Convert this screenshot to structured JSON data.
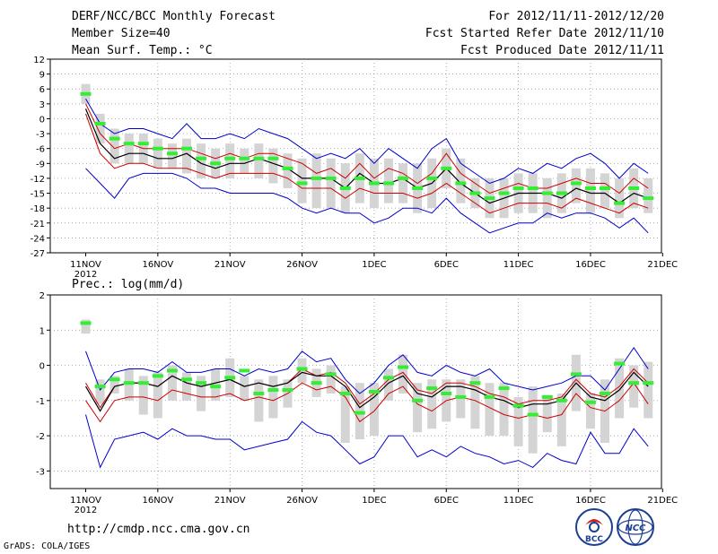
{
  "header": {
    "title": "DERF/NCC/BCC Monthly Forecast",
    "member_size": "Member Size=40",
    "period": "For 2012/11/11-2012/12/20",
    "started": "Fcst Started Refer Date 2012/11/10",
    "produced": "Fcst Produced Date 2012/11/11"
  },
  "footer": {
    "url": "http://cmdp.ncc.cma.gov.cn",
    "credit": "GrADS: COLA/IGES"
  },
  "logos": {
    "bcc": "BCC",
    "ncc": "NCC"
  },
  "colors": {
    "band": "#d4d4d4",
    "mean": "#000000",
    "inner": "#cc0000",
    "outer": "#0000cc",
    "median": "#33ee33",
    "grid": "#888888"
  },
  "chart_data": [
    {
      "type": "line",
      "title": "Mean Surf. Temp.: °C",
      "xlabel": "",
      "ylabel": "°C",
      "x_ticks": [
        "11NOV",
        "16NOV",
        "21NOV",
        "26NOV",
        "1DEC",
        "6DEC",
        "11DEC",
        "16DEC",
        "21DEC"
      ],
      "x_year": "2012",
      "ylim": [
        -27,
        12
      ],
      "y_ticks": [
        -27,
        -24,
        -21,
        -18,
        -15,
        -12,
        -9,
        -6,
        -3,
        0,
        3,
        6,
        9,
        12
      ],
      "grid": true,
      "days": 40,
      "series": [
        {
          "name": "max",
          "values": [
            4,
            -1,
            -3,
            -2,
            -2,
            -3,
            -4,
            -1,
            -4,
            -4,
            -3,
            -4,
            -2,
            -3,
            -4,
            -6,
            -8,
            -7,
            -8,
            -6,
            -9,
            -6,
            -8,
            -10,
            -6,
            -4,
            -9,
            -11,
            -13,
            -12,
            -10,
            -11,
            -9,
            -10,
            -8,
            -7,
            -9,
            -12,
            -9,
            -11
          ]
        },
        {
          "name": "upper",
          "values": [
            3,
            -3,
            -6,
            -5,
            -6,
            -6,
            -6,
            -6,
            -7,
            -8,
            -7,
            -8,
            -7,
            -7,
            -8,
            -9,
            -11,
            -10,
            -12,
            -9,
            -12,
            -10,
            -11,
            -13,
            -11,
            -7,
            -11,
            -13,
            -15,
            -14,
            -13,
            -14,
            -14,
            -13,
            -12,
            -13,
            -13,
            -15,
            -12,
            -14
          ]
        },
        {
          "name": "mean",
          "values": [
            2,
            -5,
            -8,
            -7,
            -7,
            -8,
            -8,
            -7,
            -9,
            -10,
            -9,
            -9,
            -8,
            -9,
            -10,
            -12,
            -12,
            -12,
            -14,
            -11,
            -13,
            -13,
            -12,
            -14,
            -13,
            -10,
            -13,
            -15,
            -17,
            -16,
            -15,
            -15,
            -15,
            -16,
            -14,
            -15,
            -15,
            -17,
            -15,
            -16
          ]
        },
        {
          "name": "lower",
          "values": [
            1,
            -7,
            -10,
            -9,
            -9,
            -10,
            -10,
            -10,
            -11,
            -12,
            -11,
            -11,
            -11,
            -11,
            -12,
            -14,
            -14,
            -14,
            -16,
            -14,
            -15,
            -15,
            -15,
            -16,
            -15,
            -13,
            -15,
            -17,
            -19,
            -18,
            -17,
            -17,
            -17,
            -18,
            -16,
            -17,
            -18,
            -19,
            -17,
            -18
          ]
        },
        {
          "name": "min",
          "values": [
            -10,
            -13,
            -16,
            -12,
            -11,
            -11,
            -11,
            -12,
            -14,
            -14,
            -15,
            -15,
            -15,
            -15,
            -16,
            -18,
            -19,
            -18,
            -19,
            -19,
            -21,
            -20,
            -18,
            -18,
            -19,
            -16,
            -19,
            -21,
            -23,
            -22,
            -21,
            -21,
            -19,
            -20,
            -19,
            -19,
            -20,
            -22,
            -20,
            -23
          ]
        },
        {
          "name": "median",
          "values": [
            5,
            -1,
            -4,
            -5,
            -5,
            -6,
            -7,
            -6,
            -8,
            -9,
            -8,
            -8,
            -8,
            -8,
            -10,
            -13,
            -12,
            -12,
            -14,
            -12,
            -13,
            -13,
            -12,
            -14,
            -12,
            -10,
            -13,
            -15,
            -16,
            -15,
            -14,
            -14,
            -15,
            -15,
            -13,
            -14,
            -14,
            -17,
            -14,
            -16
          ]
        },
        {
          "name": "band_top",
          "values": [
            7,
            1,
            -2,
            -3,
            -3,
            -4,
            -5,
            -4,
            -5,
            -6,
            -5,
            -6,
            -5,
            -6,
            -7,
            -8,
            -7,
            -8,
            -9,
            -7,
            -8,
            -8,
            -9,
            -9,
            -8,
            -6,
            -8,
            -12,
            -12,
            -12,
            -11,
            -11,
            -12,
            -11,
            -10,
            -10,
            -11,
            -12,
            -10,
            -12
          ]
        },
        {
          "name": "band_bot",
          "values": [
            3,
            -5,
            -9,
            -9,
            -9,
            -10,
            -10,
            -11,
            -12,
            -12,
            -12,
            -11,
            -12,
            -13,
            -14,
            -17,
            -18,
            -18,
            -19,
            -17,
            -18,
            -17,
            -17,
            -19,
            -18,
            -14,
            -17,
            -18,
            -20,
            -20,
            -19,
            -19,
            -20,
            -19,
            -17,
            -19,
            -18,
            -20,
            -18,
            -19
          ]
        }
      ]
    },
    {
      "type": "line",
      "title": "Prec.: log(mm/d)",
      "xlabel": "",
      "ylabel": "log(mm/d)",
      "x_ticks": [
        "11NOV",
        "16NOV",
        "21NOV",
        "26NOV",
        "1DEC",
        "6DEC",
        "11DEC",
        "16DEC",
        "21DEC"
      ],
      "x_year": "2012",
      "ylim": [
        -3.5,
        2
      ],
      "y_ticks": [
        -3,
        -2,
        -1,
        0,
        1,
        2
      ],
      "grid": true,
      "days": 40,
      "series": [
        {
          "name": "max",
          "values": [
            0.4,
            -0.7,
            -0.2,
            -0.1,
            -0.1,
            -0.2,
            0.1,
            -0.2,
            -0.2,
            -0.1,
            -0.1,
            -0.3,
            -0.1,
            -0.2,
            -0.1,
            0.4,
            0.1,
            0.2,
            -0.4,
            -0.8,
            -0.5,
            0,
            0.3,
            -0.2,
            -0.3,
            0,
            -0.2,
            -0.3,
            -0.1,
            -0.5,
            -0.6,
            -0.7,
            -0.6,
            -0.5,
            -0.3,
            -0.3,
            -0.7,
            -0.1,
            0.5,
            -0.1
          ]
        },
        {
          "name": "upper",
          "values": [
            -0.5,
            -1.2,
            -0.6,
            -0.5,
            -0.5,
            -0.6,
            -0.3,
            -0.5,
            -0.6,
            -0.5,
            -0.4,
            -0.6,
            -0.5,
            -0.6,
            -0.5,
            -0.1,
            -0.3,
            -0.2,
            -0.5,
            -1.1,
            -0.8,
            -0.4,
            -0.2,
            -0.7,
            -0.8,
            -0.5,
            -0.5,
            -0.6,
            -0.8,
            -0.9,
            -1.1,
            -1.0,
            -1.0,
            -0.9,
            -0.4,
            -0.8,
            -0.9,
            -0.6,
            -0.1,
            -0.5
          ]
        },
        {
          "name": "mean",
          "values": [
            -0.6,
            -1.3,
            -0.6,
            -0.5,
            -0.5,
            -0.6,
            -0.3,
            -0.5,
            -0.6,
            -0.5,
            -0.4,
            -0.6,
            -0.5,
            -0.6,
            -0.5,
            -0.2,
            -0.3,
            -0.3,
            -0.6,
            -1.2,
            -0.9,
            -0.5,
            -0.3,
            -0.8,
            -0.9,
            -0.6,
            -0.6,
            -0.7,
            -0.9,
            -1.0,
            -1.2,
            -1.1,
            -1.1,
            -1.0,
            -0.5,
            -0.9,
            -1.0,
            -0.7,
            -0.2,
            -0.6
          ]
        },
        {
          "name": "lower",
          "values": [
            -1.0,
            -1.6,
            -1.0,
            -0.9,
            -0.9,
            -1.0,
            -0.7,
            -0.8,
            -0.9,
            -0.9,
            -0.8,
            -1.0,
            -0.9,
            -1.0,
            -0.8,
            -0.5,
            -0.7,
            -0.6,
            -0.9,
            -1.6,
            -1.3,
            -0.8,
            -0.6,
            -1.1,
            -1.3,
            -1.0,
            -0.9,
            -1.0,
            -1.2,
            -1.4,
            -1.5,
            -1.4,
            -1.5,
            -1.4,
            -0.8,
            -1.2,
            -1.3,
            -1.0,
            -0.5,
            -1.1
          ]
        },
        {
          "name": "min",
          "values": [
            -1.4,
            -2.9,
            -2.1,
            -2.0,
            -1.9,
            -2.1,
            -1.8,
            -2.0,
            -2.0,
            -2.1,
            -2.1,
            -2.4,
            -2.3,
            -2.2,
            -2.1,
            -1.6,
            -1.9,
            -2.0,
            -2.4,
            -2.8,
            -2.6,
            -2.0,
            -2.0,
            -2.6,
            -2.4,
            -2.6,
            -2.3,
            -2.5,
            -2.6,
            -2.8,
            -2.7,
            -2.9,
            -2.5,
            -2.7,
            -2.8,
            -1.9,
            -2.5,
            -2.5,
            -1.8,
            -2.3
          ]
        },
        {
          "name": "median",
          "values": [
            1.2,
            -0.6,
            -0.4,
            -0.5,
            -0.5,
            -0.3,
            -0.15,
            -0.4,
            -0.5,
            -0.6,
            -0.35,
            -0.15,
            -0.8,
            -0.7,
            -0.7,
            -0.1,
            -0.5,
            -0.25,
            -0.8,
            -1.35,
            -0.75,
            -0.35,
            -0.05,
            -1.0,
            -0.65,
            -0.8,
            -0.9,
            -0.5,
            -0.9,
            -0.65,
            -1.15,
            -1.4,
            -0.9,
            -1.0,
            -0.25,
            -1.05,
            -0.8,
            0.05,
            -0.5,
            -0.5
          ]
        },
        {
          "name": "band_top",
          "values": [
            1.3,
            -0.4,
            -0.3,
            -0.1,
            -0.3,
            -0.2,
            0,
            -0.2,
            -0.3,
            -0.1,
            0.2,
            -0.3,
            -0.4,
            -0.3,
            -0.4,
            0.2,
            -0.1,
            0,
            -0.6,
            -0.5,
            -0.5,
            -0.1,
            0.3,
            -0.5,
            -0.4,
            -0.4,
            -0.4,
            -0.3,
            -0.5,
            -0.5,
            -0.9,
            -0.6,
            -0.9,
            -0.8,
            0.3,
            -0.8,
            -0.4,
            0.2,
            0,
            0.1
          ]
        },
        {
          "name": "band_bot",
          "values": [
            0.9,
            -1.1,
            -0.8,
            -1.0,
            -1.4,
            -1.5,
            -1.0,
            -1.0,
            -1.3,
            -1.0,
            -0.9,
            -1.0,
            -1.6,
            -1.5,
            -1.2,
            -0.5,
            -0.9,
            -0.8,
            -2.2,
            -2.1,
            -2.0,
            -1.0,
            -0.8,
            -1.9,
            -1.8,
            -1.6,
            -1.5,
            -1.8,
            -2.0,
            -2.0,
            -2.3,
            -2.5,
            -1.9,
            -2.3,
            -1.3,
            -1.8,
            -2.2,
            -1.5,
            -1.2,
            -1.5
          ]
        }
      ]
    }
  ]
}
